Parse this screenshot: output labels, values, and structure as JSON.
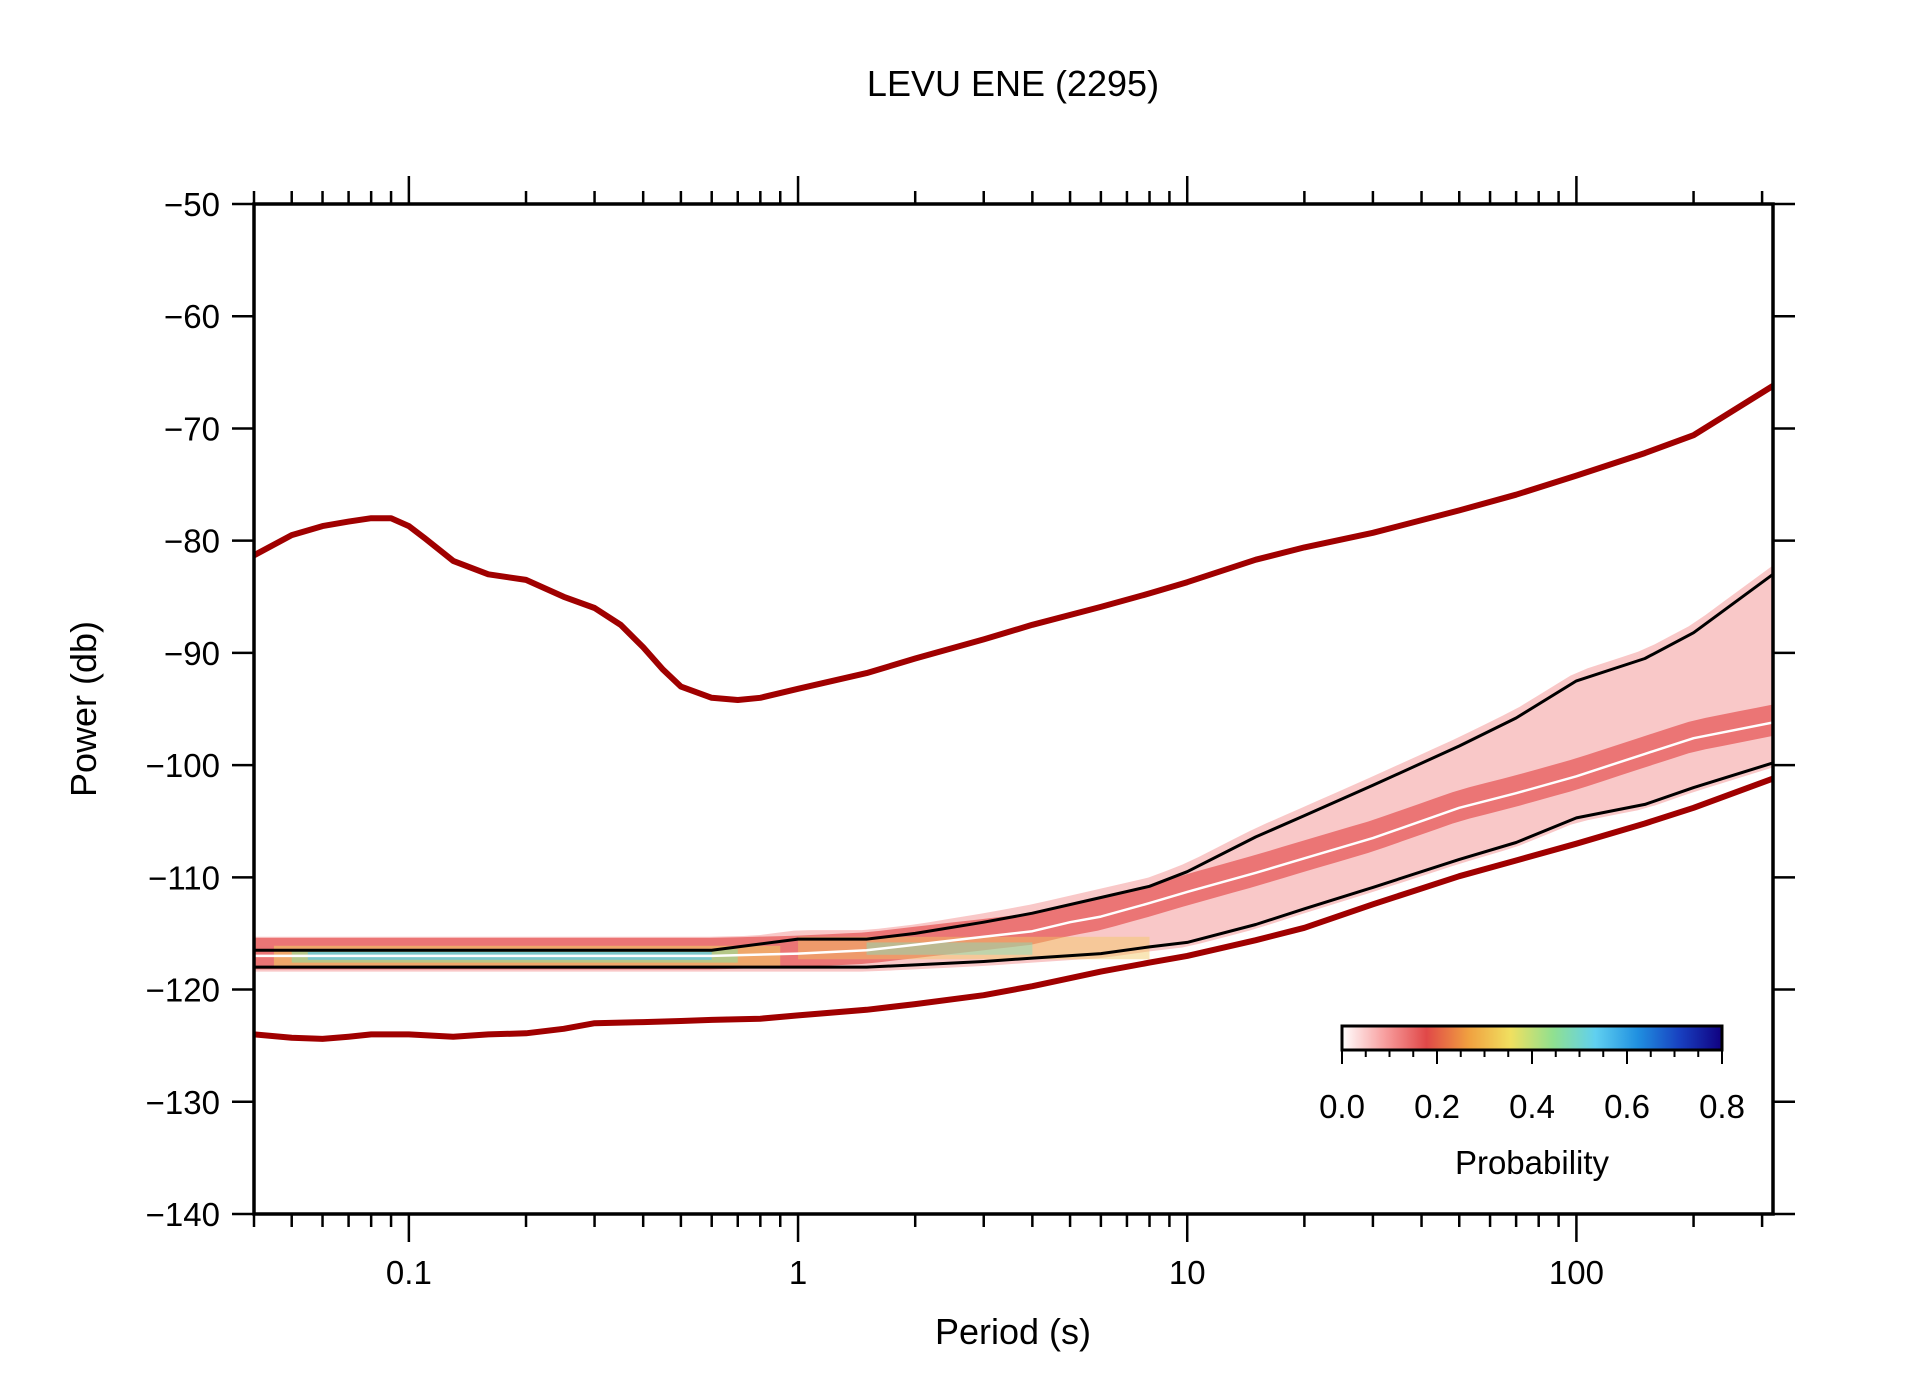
{
  "chart_data": {
    "type": "line",
    "title": "LEVU ENE (2295)",
    "xlabel": "Period (s)",
    "ylabel": "Power (db)",
    "x_scale": "log",
    "xlim": [
      0.04,
      320
    ],
    "ylim": [
      -140,
      -50
    ],
    "x_ticks": [
      {
        "value": 0.1,
        "label": "0.1"
      },
      {
        "value": 1,
        "label": "1"
      },
      {
        "value": 10,
        "label": "10"
      },
      {
        "value": 100,
        "label": "100"
      }
    ],
    "y_ticks": [
      {
        "value": -50,
        "label": "−50"
      },
      {
        "value": -60,
        "label": "−60"
      },
      {
        "value": -70,
        "label": "−70"
      },
      {
        "value": -80,
        "label": "−80"
      },
      {
        "value": -90,
        "label": "−90"
      },
      {
        "value": -100,
        "label": "−100"
      },
      {
        "value": -110,
        "label": "−110"
      },
      {
        "value": -120,
        "label": "−120"
      },
      {
        "value": -130,
        "label": "−130"
      },
      {
        "value": -140,
        "label": "−140"
      }
    ],
    "grid": false,
    "colorbar": {
      "label": "Probability",
      "range": [
        0,
        0.8
      ],
      "ticks": [
        "0.0",
        "0.2",
        "0.4",
        "0.6",
        "0.8"
      ],
      "position": "bottom-right",
      "colors": [
        "#ffffff",
        "#f8a0a0",
        "#e04848",
        "#f0a040",
        "#f0e060",
        "#90e090",
        "#60d0f0",
        "#2090e0",
        "#1840c0",
        "#100080"
      ]
    },
    "series": [
      {
        "role": "high-noise-model",
        "color": "#a00000",
        "x": [
          0.04,
          0.05,
          0.06,
          0.07,
          0.08,
          0.09,
          0.1,
          0.11,
          0.13,
          0.16,
          0.2,
          0.25,
          0.3,
          0.35,
          0.4,
          0.45,
          0.5,
          0.6,
          0.7,
          0.8,
          1.0,
          1.5,
          2,
          3,
          4,
          6,
          8,
          10,
          15,
          20,
          30,
          50,
          70,
          100,
          150,
          200,
          320
        ],
        "y": [
          -81.3,
          -79.5,
          -78.7,
          -78.3,
          -78.0,
          -78.0,
          -78.7,
          -79.8,
          -81.8,
          -83.0,
          -83.5,
          -85.0,
          -86.0,
          -87.5,
          -89.5,
          -91.5,
          -93.0,
          -94.0,
          -94.2,
          -94.0,
          -93.2,
          -91.8,
          -90.5,
          -88.8,
          -87.5,
          -85.9,
          -84.7,
          -83.7,
          -81.7,
          -80.6,
          -79.3,
          -77.3,
          -75.9,
          -74.2,
          -72.2,
          -70.6,
          -66.2
        ]
      },
      {
        "role": "low-noise-model",
        "color": "#a00000",
        "x": [
          0.04,
          0.05,
          0.06,
          0.07,
          0.08,
          0.1,
          0.13,
          0.16,
          0.2,
          0.25,
          0.3,
          0.4,
          0.5,
          0.6,
          0.8,
          1.0,
          1.5,
          2,
          3,
          4,
          6,
          8,
          10,
          15,
          20,
          30,
          50,
          70,
          100,
          150,
          200,
          320
        ],
        "y": [
          -124.0,
          -124.3,
          -124.4,
          -124.2,
          -124.0,
          -124.0,
          -124.2,
          -124.0,
          -123.9,
          -123.5,
          -123.0,
          -122.9,
          -122.8,
          -122.7,
          -122.6,
          -122.3,
          -121.8,
          -121.3,
          -120.5,
          -119.7,
          -118.4,
          -117.6,
          -117.0,
          -115.6,
          -114.5,
          -112.4,
          -109.9,
          -108.5,
          -107.0,
          -105.2,
          -103.8,
          -101.2
        ]
      },
      {
        "role": "median",
        "color": "#ffffff",
        "x": [
          0.04,
          0.1,
          0.3,
          0.6,
          1.0,
          1.5,
          2,
          3,
          4,
          5,
          6,
          8,
          10,
          15,
          20,
          30,
          50,
          70,
          100,
          150,
          200,
          320
        ],
        "y": [
          -117.0,
          -117.0,
          -117.0,
          -117.0,
          -116.8,
          -116.5,
          -116.0,
          -115.3,
          -114.8,
          -114.0,
          -113.5,
          -112.3,
          -111.3,
          -109.6,
          -108.3,
          -106.5,
          -103.8,
          -102.5,
          -101.0,
          -99.0,
          -97.6,
          -96.2
        ]
      },
      {
        "role": "10th-percentile",
        "color": "#000000",
        "x": [
          0.04,
          0.1,
          0.3,
          0.6,
          1.0,
          1.5,
          2,
          3,
          4,
          6,
          8,
          10,
          15,
          20,
          30,
          50,
          70,
          100,
          150,
          200,
          320
        ],
        "y": [
          -118.0,
          -118.0,
          -118.0,
          -118.0,
          -118.0,
          -118.0,
          -117.8,
          -117.5,
          -117.2,
          -116.8,
          -116.2,
          -115.8,
          -114.2,
          -112.8,
          -110.9,
          -108.4,
          -106.9,
          -104.7,
          -103.5,
          -102.0,
          -99.8
        ]
      },
      {
        "role": "90th-percentile",
        "color": "#000000",
        "x": [
          0.04,
          0.1,
          0.3,
          0.6,
          1.0,
          1.5,
          2,
          3,
          4,
          6,
          8,
          10,
          15,
          20,
          30,
          50,
          70,
          100,
          150,
          200,
          320
        ],
        "y": [
          -116.5,
          -116.5,
          -116.5,
          -116.5,
          -115.5,
          -115.5,
          -115.0,
          -114.0,
          -113.2,
          -111.8,
          -110.8,
          -109.5,
          -106.4,
          -104.5,
          -101.8,
          -98.3,
          -95.8,
          -92.5,
          -90.5,
          -88.2,
          -83.0
        ]
      }
    ]
  }
}
